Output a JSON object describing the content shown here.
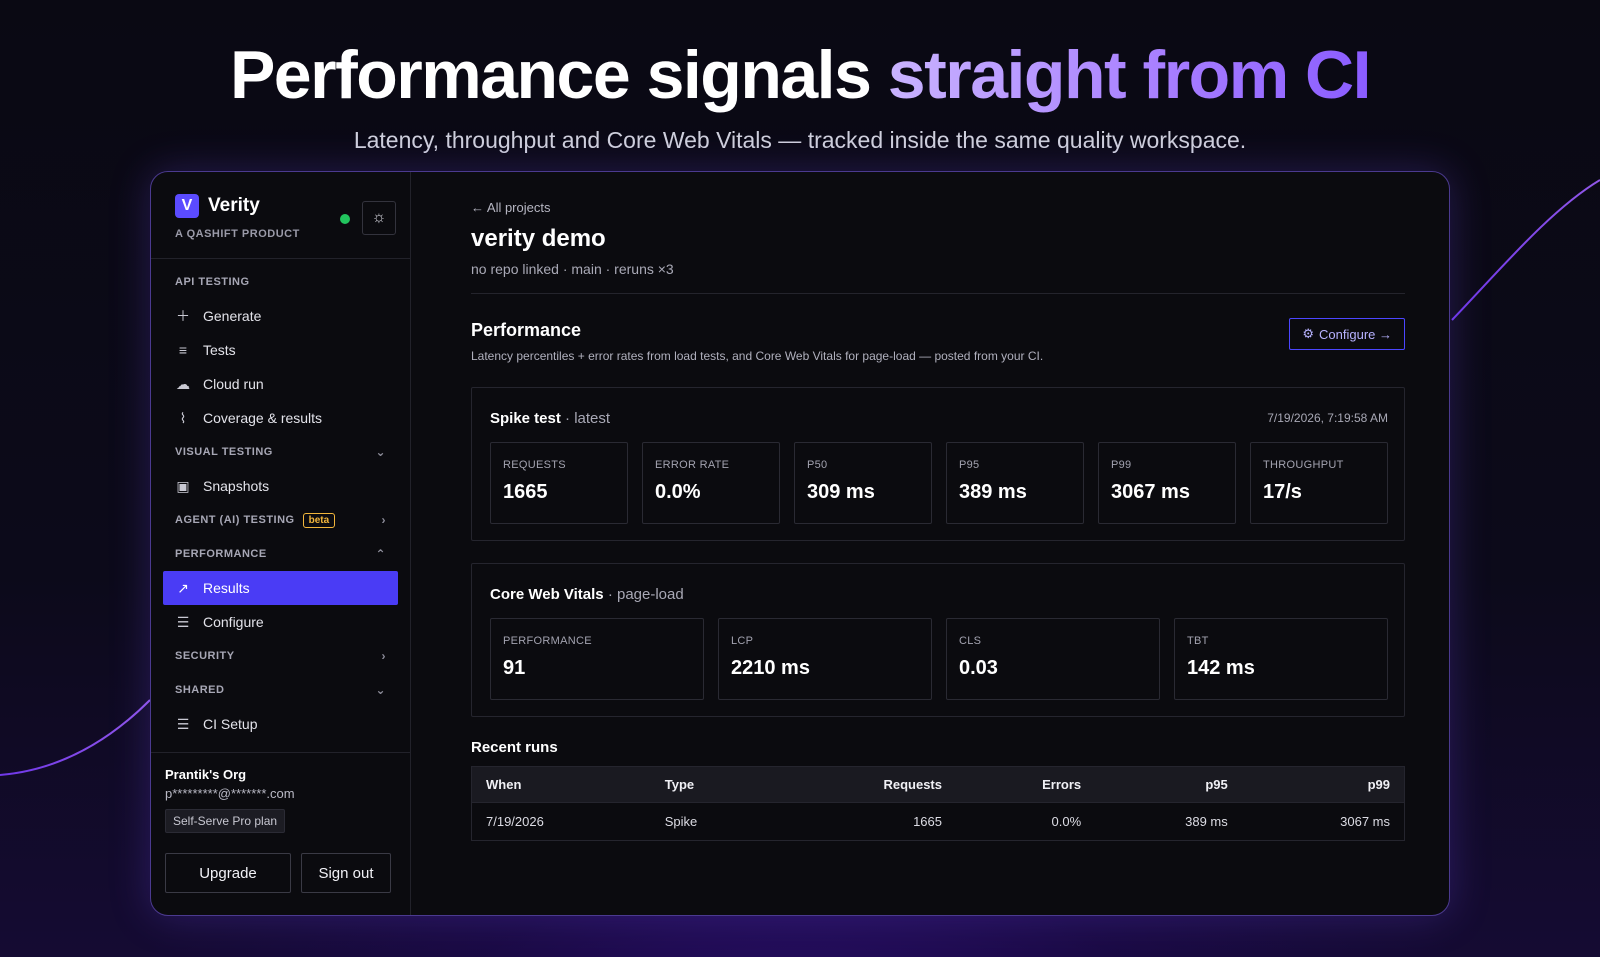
{
  "hero": {
    "title_main": "Performance signals ",
    "title_accent": "straight from CI",
    "subtitle": "Latency, throughput and Core Web Vitals — tracked inside the same quality workspace."
  },
  "brand": {
    "name": "Verity",
    "logo_letter": "V",
    "tagline": "A QASHIFT PRODUCT"
  },
  "sidebar": {
    "sections": {
      "api": "API TESTING",
      "visual": "VISUAL TESTING",
      "agent": "AGENT (AI) TESTING",
      "agent_badge": "beta",
      "performance": "PERFORMANCE",
      "security": "SECURITY",
      "shared": "SHARED"
    },
    "items": {
      "generate": "Generate",
      "tests": "Tests",
      "cloud_run": "Cloud run",
      "coverage": "Coverage & results",
      "snapshots": "Snapshots",
      "results": "Results",
      "configure": "Configure",
      "ci_setup": "CI Setup"
    }
  },
  "account": {
    "org": "Prantik's Org",
    "email": "p*********@*******.com",
    "plan": "Self-Serve Pro plan",
    "upgrade": "Upgrade",
    "signout": "Sign out"
  },
  "main": {
    "back": "← All projects",
    "title": "verity demo",
    "meta": "no repo linked · main · reruns ×3",
    "perf_title": "Performance",
    "perf_desc": "Latency percentiles + error rates from load tests, and Core Web Vitals for page-load — posted from your CI.",
    "configure_btn": "Configure →"
  },
  "spike": {
    "title": "Spike test",
    "subtitle": " · latest",
    "time": "7/19/2026, 7:19:58 AM",
    "metrics": [
      {
        "label": "REQUESTS",
        "value": "1665"
      },
      {
        "label": "ERROR RATE",
        "value": "0.0%"
      },
      {
        "label": "P50",
        "value": "309 ms"
      },
      {
        "label": "P95",
        "value": "389 ms"
      },
      {
        "label": "P99",
        "value": "3067 ms"
      },
      {
        "label": "THROUGHPUT",
        "value": "17/s"
      }
    ]
  },
  "cwv": {
    "title": "Core Web Vitals",
    "subtitle": " · page-load",
    "metrics": [
      {
        "label": "PERFORMANCE",
        "value": "91"
      },
      {
        "label": "LCP",
        "value": "2210 ms"
      },
      {
        "label": "CLS",
        "value": "0.03"
      },
      {
        "label": "TBT",
        "value": "142 ms"
      }
    ]
  },
  "runs": {
    "title": "Recent runs",
    "headers": [
      "When",
      "Type",
      "Requests",
      "Errors",
      "p95",
      "p99"
    ],
    "rows": [
      [
        "7/19/2026",
        "Spike",
        "1665",
        "0.0%",
        "389 ms",
        "3067 ms"
      ]
    ]
  }
}
